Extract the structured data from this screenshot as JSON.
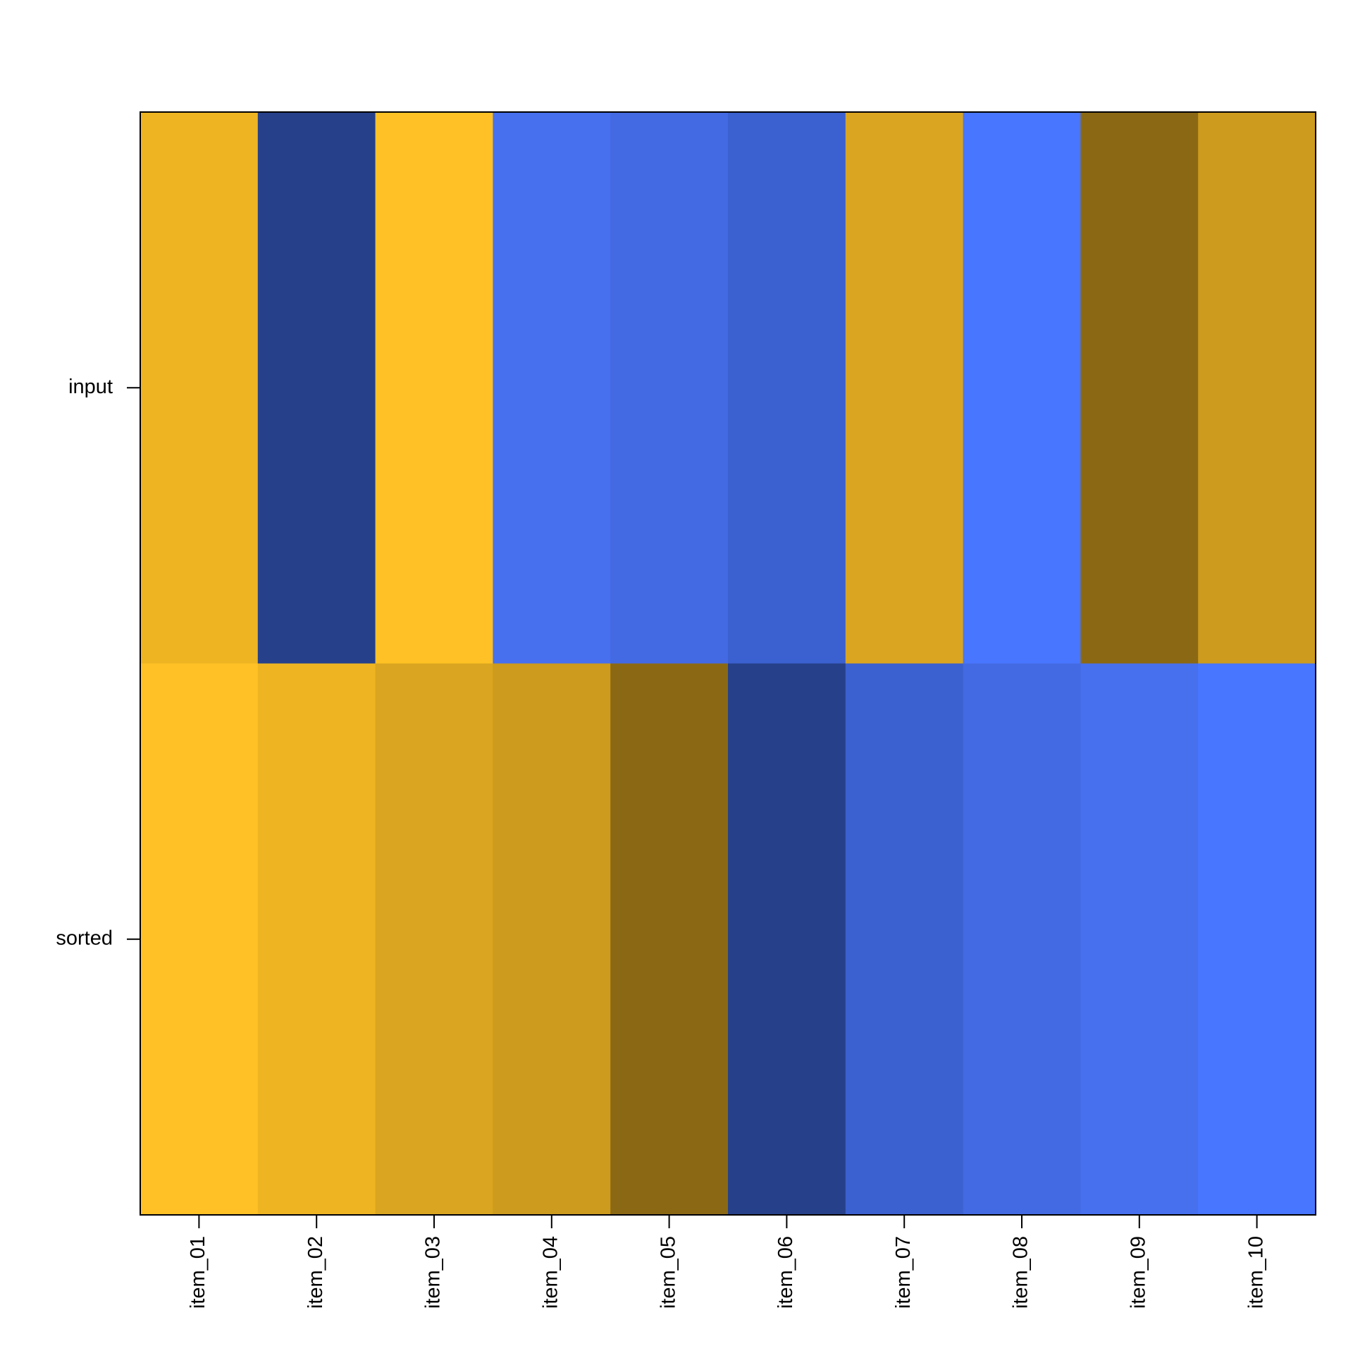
{
  "chart_data": {
    "type": "heatmap",
    "categories": [
      "item_01",
      "item_02",
      "item_03",
      "item_04",
      "item_05",
      "item_06",
      "item_07",
      "item_08",
      "item_09",
      "item_10"
    ],
    "rows": [
      "input",
      "sorted"
    ],
    "colors": [
      [
        "#EEB422",
        "#26418A",
        "#FFC125",
        "#4770EE",
        "#436AE2",
        "#3B60CF",
        "#DAA520",
        "#4876FF",
        "#8B6914",
        "#CD9B1D"
      ],
      [
        "#FFC125",
        "#EEB422",
        "#DAA520",
        "#CD9B1D",
        "#8B6914",
        "#26418A",
        "#3B60CF",
        "#436AE2",
        "#4770EE",
        "#4876FF"
      ]
    ]
  }
}
